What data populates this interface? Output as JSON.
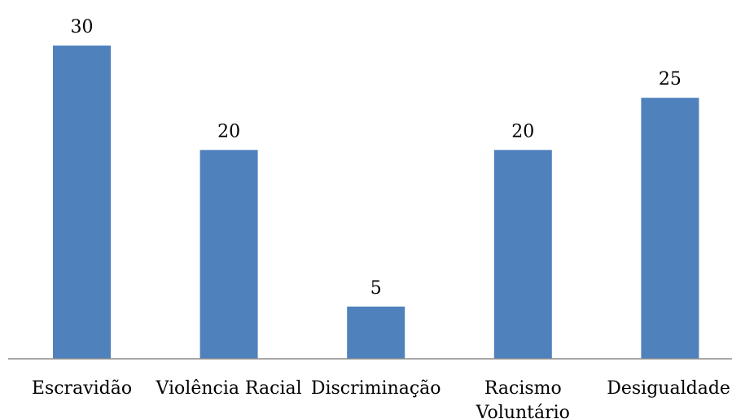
{
  "chart_data": {
    "type": "bar",
    "categories": [
      "Escravidão",
      "Violência Racial",
      "Discriminação",
      "Racismo Voluntário",
      "Desigualdade"
    ],
    "category_lines": [
      [
        "Escravidão"
      ],
      [
        "Violência Racial"
      ],
      [
        "Discriminação"
      ],
      [
        "Racismo",
        "Voluntário"
      ],
      [
        "Desigualdade"
      ]
    ],
    "values": [
      30,
      20,
      5,
      20,
      25
    ],
    "data_labels": [
      "30",
      "20",
      "5",
      "20",
      "25"
    ],
    "ylim": [
      0,
      30
    ],
    "grid": false,
    "legend": "none",
    "bar_color": "#4f81bd",
    "axis_color": "#8c8c8c"
  }
}
